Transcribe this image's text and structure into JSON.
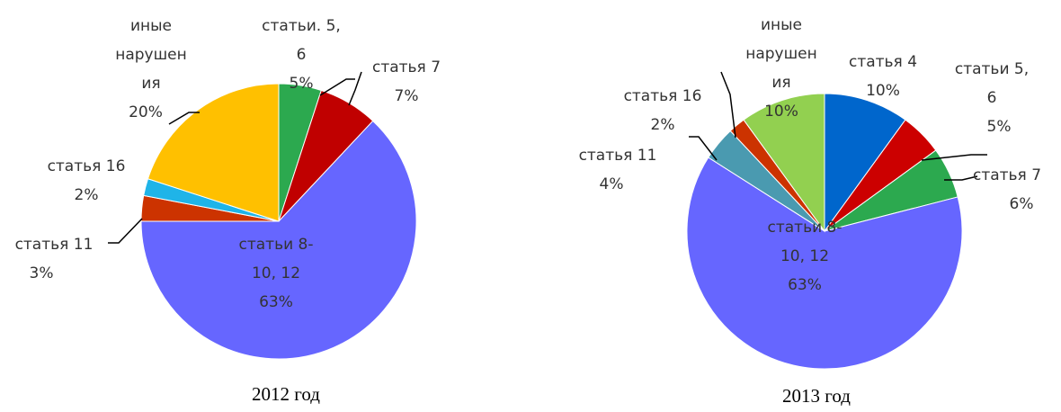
{
  "chart_data": [
    {
      "type": "pie",
      "caption": "2012 год",
      "slices": [
        {
          "label_lines": [
            "статьи. 5,",
            "6"
          ],
          "percent_label": "5%",
          "value": 5,
          "color": "#2ca94f"
        },
        {
          "label_lines": [
            "статья 7"
          ],
          "percent_label": "7%",
          "value": 7,
          "color": "#c00000"
        },
        {
          "label_lines": [
            "статьи 8-",
            "10, 12"
          ],
          "percent_label": "63%",
          "value": 63,
          "color": "#6666ff"
        },
        {
          "label_lines": [
            "статья 11"
          ],
          "percent_label": "3%",
          "value": 3,
          "color": "#cc3300"
        },
        {
          "label_lines": [
            "статья 16"
          ],
          "percent_label": "2%",
          "value": 2,
          "color": "#1fb4e8"
        },
        {
          "label_lines": [
            "иные",
            "нарушен",
            "ия"
          ],
          "percent_label": "20%",
          "value": 20,
          "color": "#ffc000"
        }
      ]
    },
    {
      "type": "pie",
      "caption": "2013 год",
      "slices": [
        {
          "label_lines": [
            "статья 4"
          ],
          "percent_label": "10%",
          "value": 10,
          "color": "#0066cc"
        },
        {
          "label_lines": [
            "статьи 5,",
            "6"
          ],
          "percent_label": "5%",
          "value": 5,
          "color": "#cc0000"
        },
        {
          "label_lines": [
            "статья 7"
          ],
          "percent_label": "6%",
          "value": 6,
          "color": "#2ca94f"
        },
        {
          "label_lines": [
            "статьи 8-",
            "10, 12"
          ],
          "percent_label": "63%",
          "value": 63,
          "color": "#6666ff"
        },
        {
          "label_lines": [
            "статья 11"
          ],
          "percent_label": "4%",
          "value": 4,
          "color": "#4a9ab0"
        },
        {
          "label_lines": [
            "статья 16"
          ],
          "percent_label": "2%",
          "value": 2,
          "color": "#cc3300"
        },
        {
          "label_lines": [
            "иные",
            "нарушен",
            "ия"
          ],
          "percent_label": "10%",
          "value": 10,
          "color": "#92d050"
        }
      ]
    }
  ]
}
